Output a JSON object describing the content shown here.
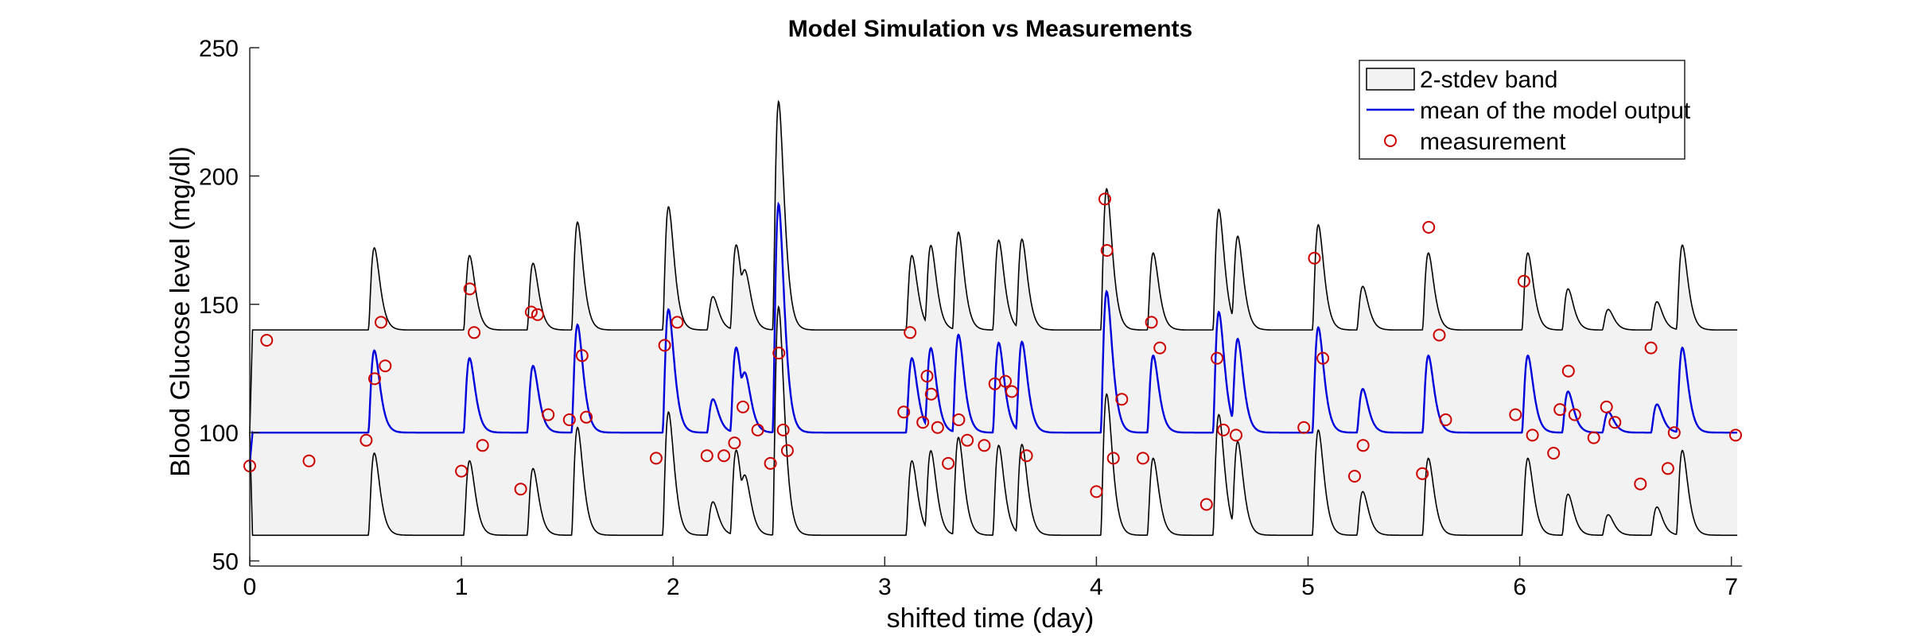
{
  "chart_data": {
    "type": "line",
    "title": "Model Simulation vs Measurements",
    "xlabel": "shifted time (day)",
    "ylabel": "Blood Glucose level (mg/dl)",
    "xlim": [
      0,
      7.05
    ],
    "ylim": [
      48,
      250
    ],
    "xticks": [
      0,
      1,
      2,
      3,
      4,
      5,
      6,
      7
    ],
    "yticks": [
      50,
      100,
      150,
      200,
      250
    ],
    "baseline_mean": 100,
    "band_halfwidth": 40,
    "start_day": 0.013,
    "legend": {
      "location": "top-right",
      "entries": [
        "2-stdev band",
        "mean of the model output",
        "measurement"
      ]
    },
    "colors": {
      "band_fill": "#f2f2f2",
      "band_edge": "#000000",
      "mean_line": "#0000dd",
      "measurement": "#cc0000"
    },
    "meal_peaks": [
      {
        "t": 0.56,
        "mean_amp": 32
      },
      {
        "t": 1.01,
        "mean_amp": 29
      },
      {
        "t": 1.31,
        "mean_amp": 26
      },
      {
        "t": 1.52,
        "mean_amp": 42
      },
      {
        "t": 1.95,
        "mean_amp": 48
      },
      {
        "t": 2.16,
        "mean_amp": 13
      },
      {
        "t": 2.27,
        "mean_amp": 33
      },
      {
        "t": 2.32,
        "mean_amp": 14
      },
      {
        "t": 2.47,
        "mean_amp": 89
      },
      {
        "t": 3.1,
        "mean_amp": 29
      },
      {
        "t": 3.19,
        "mean_amp": 32
      },
      {
        "t": 3.32,
        "mean_amp": 38
      },
      {
        "t": 3.51,
        "mean_amp": 35
      },
      {
        "t": 3.62,
        "mean_amp": 35
      },
      {
        "t": 4.02,
        "mean_amp": 55
      },
      {
        "t": 4.24,
        "mean_amp": 30
      },
      {
        "t": 4.55,
        "mean_amp": 47
      },
      {
        "t": 4.64,
        "mean_amp": 35
      },
      {
        "t": 5.02,
        "mean_amp": 41
      },
      {
        "t": 5.23,
        "mean_amp": 17
      },
      {
        "t": 5.54,
        "mean_amp": 30
      },
      {
        "t": 6.01,
        "mean_amp": 30
      },
      {
        "t": 6.2,
        "mean_amp": 16
      },
      {
        "t": 6.39,
        "mean_amp": 8
      },
      {
        "t": 6.62,
        "mean_amp": 11
      },
      {
        "t": 6.74,
        "mean_amp": 33
      }
    ],
    "measurements": {
      "x": [
        0.0,
        0.08,
        0.28,
        0.55,
        0.59,
        0.62,
        0.64,
        1.0,
        1.04,
        1.06,
        1.1,
        1.28,
        1.33,
        1.36,
        1.41,
        1.51,
        1.57,
        1.59,
        1.92,
        1.96,
        2.02,
        2.16,
        2.24,
        2.29,
        2.33,
        2.4,
        2.46,
        2.5,
        2.52,
        2.54,
        3.09,
        3.12,
        3.18,
        3.2,
        3.22,
        3.25,
        3.3,
        3.35,
        3.39,
        3.47,
        3.52,
        3.57,
        3.6,
        3.67,
        4.0,
        4.04,
        4.05,
        4.08,
        4.12,
        4.22,
        4.26,
        4.3,
        4.52,
        4.57,
        4.6,
        4.66,
        4.98,
        5.03,
        5.07,
        5.22,
        5.26,
        5.54,
        5.57,
        5.62,
        5.65,
        5.98,
        6.02,
        6.06,
        6.16,
        6.19,
        6.23,
        6.26,
        6.35,
        6.41,
        6.45,
        6.57,
        6.62,
        6.7,
        6.73,
        7.02
      ],
      "y": [
        87,
        136,
        89,
        97,
        121,
        143,
        126,
        85,
        156,
        139,
        95,
        78,
        147,
        146,
        107,
        105,
        130,
        106,
        90,
        134,
        143,
        91,
        91,
        96,
        110,
        101,
        88,
        131,
        101,
        93,
        108,
        139,
        104,
        122,
        115,
        102,
        88,
        105,
        97,
        95,
        119,
        120,
        116,
        91,
        77,
        191,
        171,
        90,
        113,
        90,
        143,
        133,
        72,
        129,
        101,
        99,
        102,
        168,
        129,
        83,
        95,
        84,
        180,
        138,
        105,
        107,
        159,
        99,
        92,
        109,
        124,
        107,
        98,
        110,
        104,
        80,
        133,
        86,
        100,
        99
      ]
    }
  }
}
